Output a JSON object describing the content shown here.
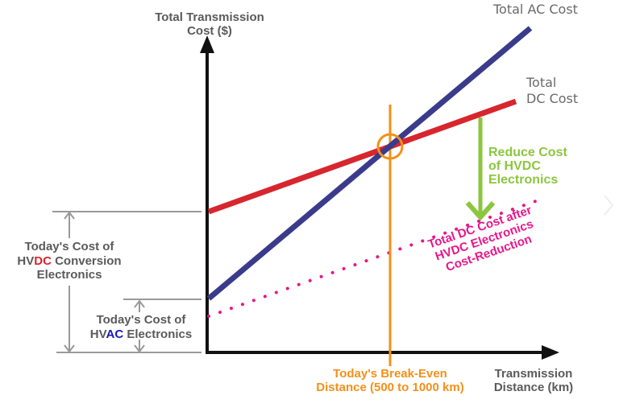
{
  "colors": {
    "ac_line": "#3b3b8c",
    "dc_line": "#d7262e",
    "reduced_dc": "#e8168a",
    "break_even": "#f39019",
    "reduce_arrow": "#8cc63f",
    "label_gray": "#5a5a5a",
    "hvdc_red": "#d7262e",
    "hvac_blue": "#1a1ab8"
  },
  "y_axis": {
    "title_line1": "Total Transmission",
    "title_line2": "Cost ($)"
  },
  "x_axis": {
    "title_line1": "Transmission",
    "title_line2": "Distance (km)"
  },
  "lines": {
    "ac_label": "Total AC Cost",
    "dc_label_line1": "Total",
    "dc_label_line2": "DC Cost"
  },
  "reduce": {
    "line1": "Reduce Cost",
    "line2": "of HVDC",
    "line3": "Electronics"
  },
  "reduced_dc": {
    "line1": "Total DC Cost after",
    "line2": "HVDC Electronics",
    "line3": "Cost-Reduction"
  },
  "break_even": {
    "line1": "Today's Break-Even",
    "line2": "Distance (500 to 1000 km)"
  },
  "hvdc_cost": {
    "line1": "Today's Cost of",
    "line2_pre": "HV",
    "line2_hl": "DC",
    "line2_post": " Conversion",
    "line3": "Electronics"
  },
  "hvac_cost": {
    "line1": "Today's Cost of",
    "line2_pre": "HV",
    "line2_hl": "AC",
    "line2_post": " Electronics"
  }
}
